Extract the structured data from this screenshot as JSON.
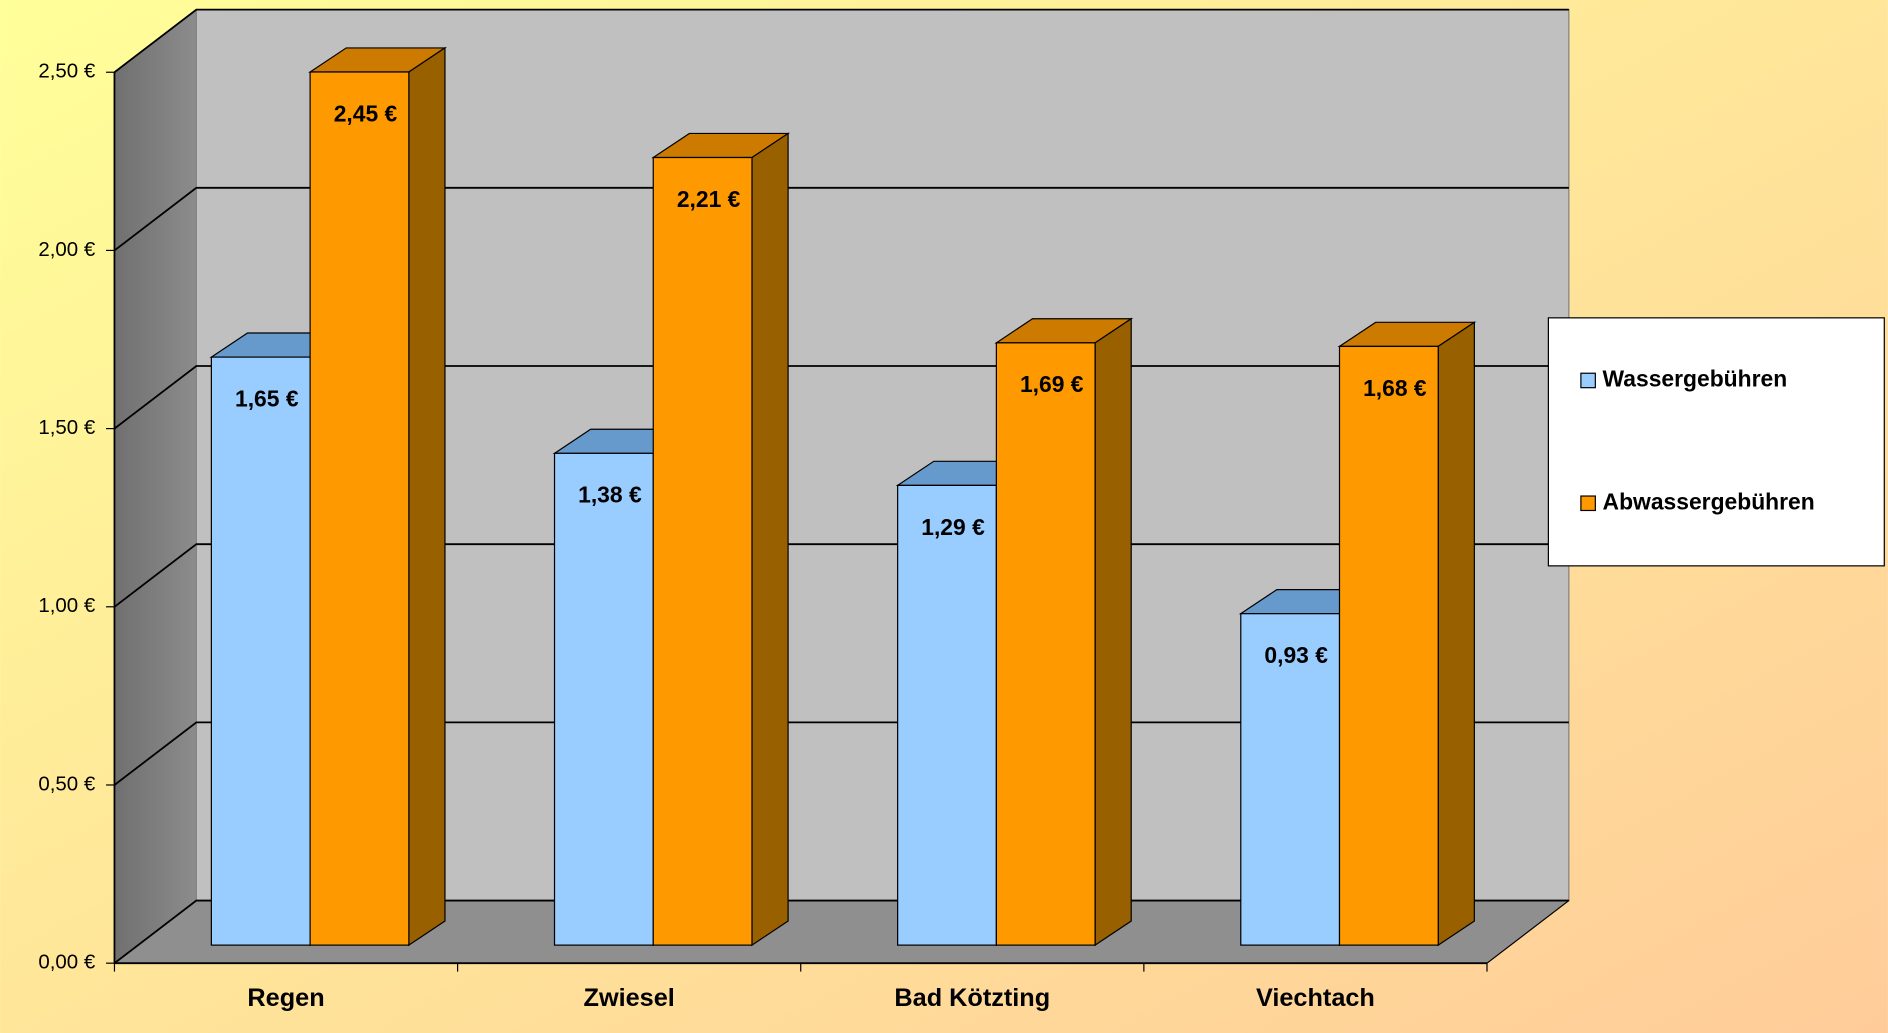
{
  "chart_data": {
    "type": "bar3d",
    "categories": [
      "Regen",
      "Zwiesel",
      "Bad Kötzting",
      "Viechtach"
    ],
    "series": [
      {
        "name": "Wassergebühren",
        "color": "#99ccff",
        "values": [
          1.65,
          1.38,
          1.29,
          0.93
        ],
        "value_labels": [
          "1,65 €",
          "1,38 €",
          "1,29 €",
          "0,93 €"
        ]
      },
      {
        "name": "Abwassergebühren",
        "color": "#ff9900",
        "values": [
          2.45,
          2.21,
          1.69,
          1.68
        ],
        "value_labels": [
          "2,45 €",
          "2,21 €",
          "1,69 €",
          "1,68 €"
        ]
      }
    ],
    "ylim": [
      0,
      2.5
    ],
    "yticks": [
      {
        "value": 0,
        "label": "0,00 €"
      },
      {
        "value": 0.5,
        "label": "0,50 €"
      },
      {
        "value": 1,
        "label": "1,00 €"
      },
      {
        "value": 1.5,
        "label": "1,50 €"
      },
      {
        "value": 2,
        "label": "2,00 €"
      },
      {
        "value": 2.5,
        "label": "2,50 €"
      }
    ],
    "grid": true,
    "legend": "right"
  }
}
